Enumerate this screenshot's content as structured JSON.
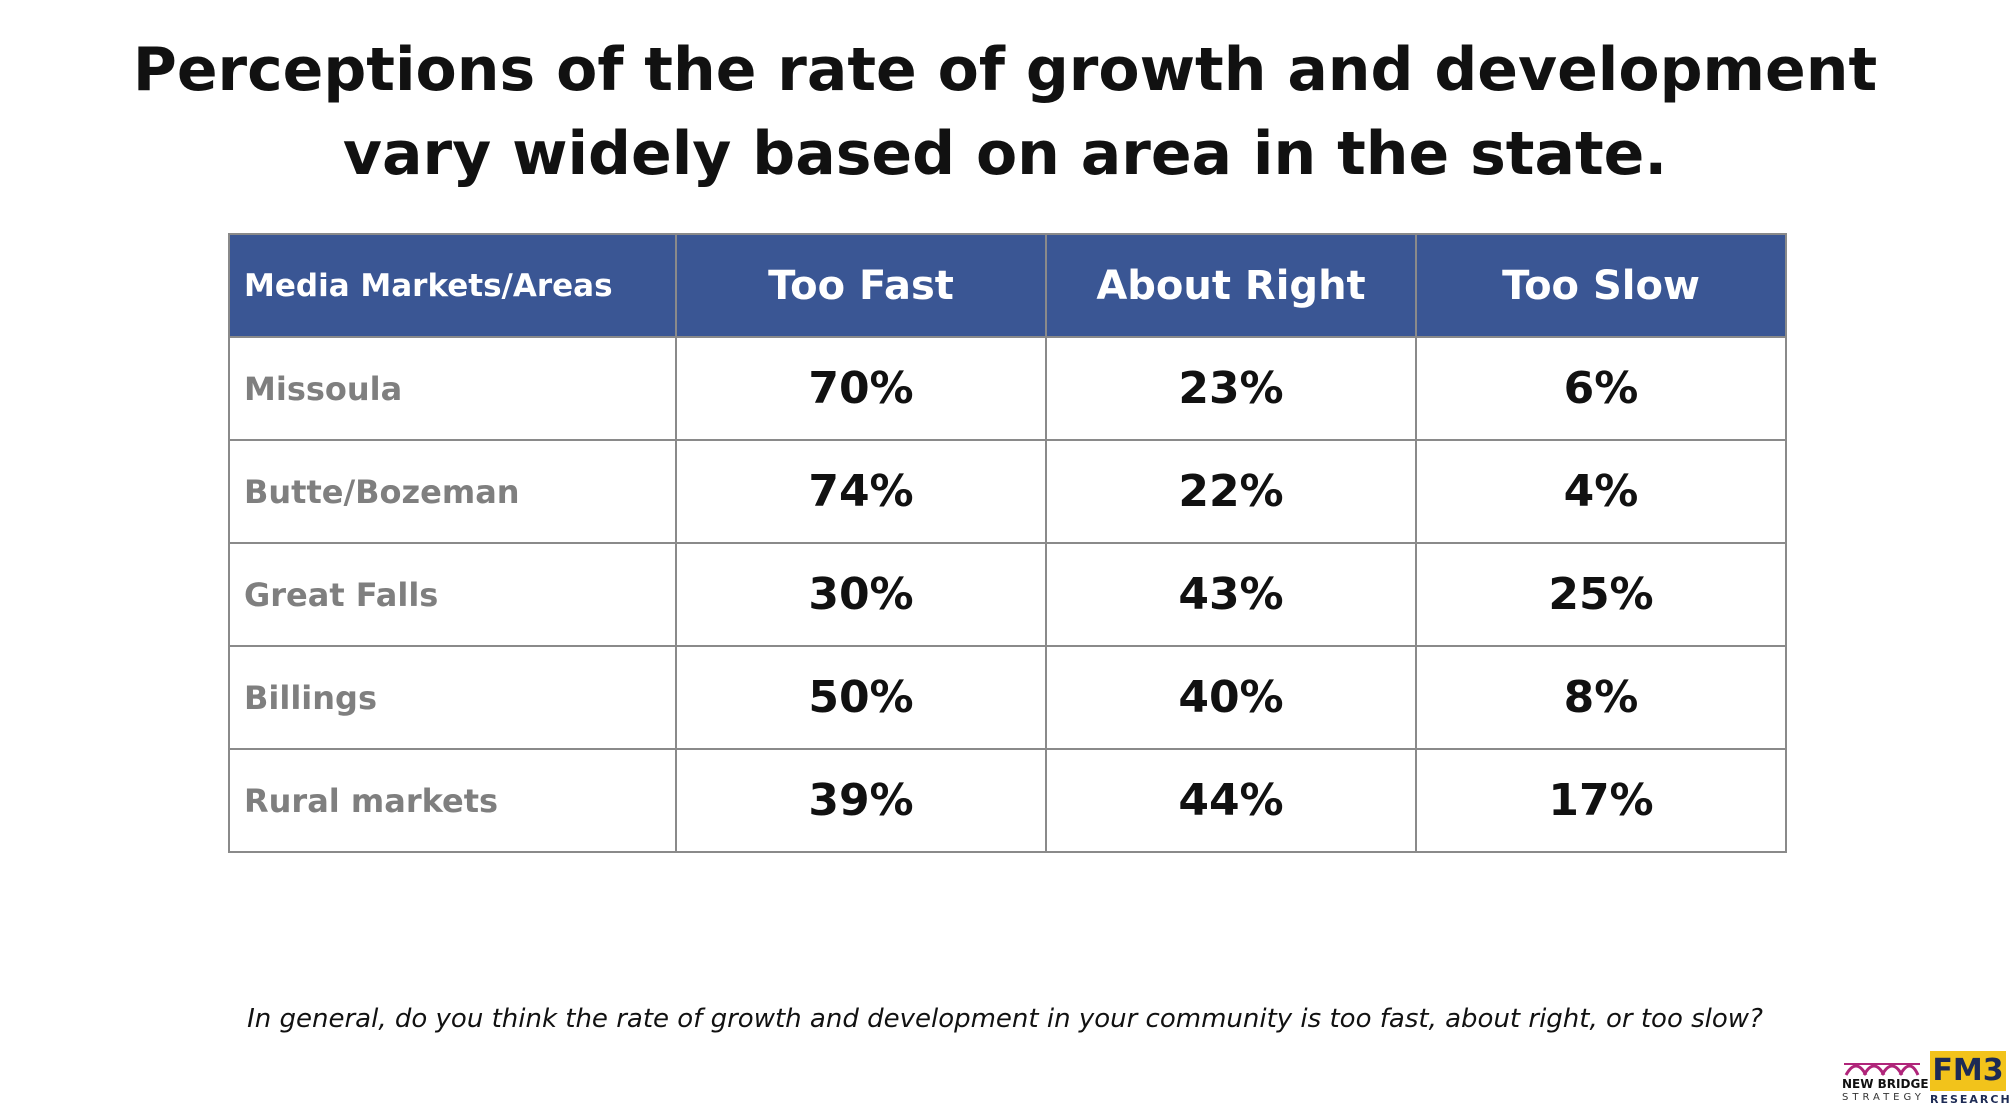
{
  "title": "Perceptions of the rate of growth and development vary widely based on area in the state.",
  "chart_data": {
    "type": "table",
    "columns": [
      "Media Markets/Areas",
      "Too Fast",
      "About Right",
      "Too Slow"
    ],
    "rows": [
      {
        "area": "Missoula",
        "too_fast": "70%",
        "about_right": "23%",
        "too_slow": "6%"
      },
      {
        "area": "Butte/Bozeman",
        "too_fast": "74%",
        "about_right": "22%",
        "too_slow": "4%"
      },
      {
        "area": "Great Falls",
        "too_fast": "30%",
        "about_right": "43%",
        "too_slow": "25%"
      },
      {
        "area": "Billings",
        "too_fast": "50%",
        "about_right": "40%",
        "too_slow": "8%"
      },
      {
        "area": "Rural markets",
        "too_fast": "39%",
        "about_right": "44%",
        "too_slow": "17%"
      }
    ]
  },
  "question": "In general, do you think the rate of growth and development in your community is too fast, about right, or too slow?",
  "logos": {
    "new_bridge": {
      "line1": "NEW BRIDGE",
      "line2": "STRATEGY"
    },
    "fm3": {
      "name": "FM3",
      "sub": "RESEARCH"
    }
  },
  "colors": {
    "header_bg": "#3a5694",
    "area_text": "#7f7f7f",
    "border": "#8a8a8a",
    "fm3_yellow": "#f2c31b",
    "new_bridge_magenta": "#b0257a"
  }
}
